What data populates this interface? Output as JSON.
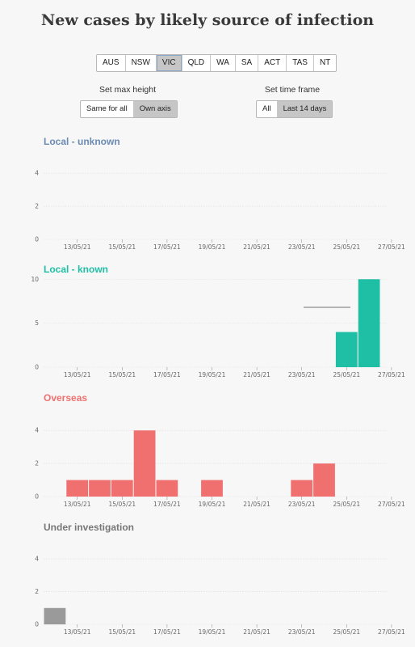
{
  "title": "New cases by likely source of infection",
  "states": {
    "items": [
      "AUS",
      "NSW",
      "VIC",
      "QLD",
      "WA",
      "SA",
      "ACT",
      "TAS",
      "NT"
    ],
    "selected": "VIC"
  },
  "max_height": {
    "label": "Set max height",
    "options": [
      "Same for all",
      "Own axis"
    ],
    "selected": "Own axis"
  },
  "time_frame": {
    "label": "Set time frame",
    "options": [
      "All",
      "Last 14 days"
    ],
    "selected": "Last 14 days"
  },
  "colors": {
    "local_unknown": "#6b8bb3",
    "local_known": "#1fbfa5",
    "overseas": "#f07070",
    "under_investigation": "#9a9a9a"
  },
  "chart_data": [
    {
      "type": "bar",
      "title": "Local - unknown",
      "x": [
        "12/05/21",
        "13/05/21",
        "14/05/21",
        "15/05/21",
        "16/05/21",
        "17/05/21",
        "18/05/21",
        "19/05/21",
        "20/05/21",
        "21/05/21",
        "22/05/21",
        "23/05/21",
        "24/05/21",
        "25/05/21",
        "26/05/21",
        "27/05/21"
      ],
      "values": [
        0,
        0,
        0,
        0,
        0,
        0,
        0,
        0,
        0,
        0,
        0,
        0,
        0,
        0,
        0,
        0
      ],
      "yticks": [
        0,
        2,
        4
      ],
      "ylim": [
        0,
        4.5
      ],
      "xticks": [
        "13/05/21",
        "15/05/21",
        "17/05/21",
        "19/05/21",
        "21/05/21",
        "23/05/21",
        "25/05/21",
        "27/05/21"
      ],
      "color": "#6b8bb3"
    },
    {
      "type": "bar",
      "title": "Local - known",
      "x": [
        "12/05/21",
        "13/05/21",
        "14/05/21",
        "15/05/21",
        "16/05/21",
        "17/05/21",
        "18/05/21",
        "19/05/21",
        "20/05/21",
        "21/05/21",
        "22/05/21",
        "23/05/21",
        "24/05/21",
        "25/05/21",
        "26/05/21",
        "27/05/21"
      ],
      "values": [
        0,
        0,
        0,
        0,
        0,
        0,
        0,
        0,
        0,
        0,
        0,
        0,
        0,
        4,
        10,
        0
      ],
      "yticks": [
        0,
        5,
        10
      ],
      "ylim": [
        0,
        10.3
      ],
      "xticks": [
        "13/05/21",
        "15/05/21",
        "17/05/21",
        "19/05/21",
        "21/05/21",
        "23/05/21",
        "25/05/21",
        "27/05/21"
      ],
      "color": "#1fbfa5"
    },
    {
      "type": "bar",
      "title": "Overseas",
      "x": [
        "12/05/21",
        "13/05/21",
        "14/05/21",
        "15/05/21",
        "16/05/21",
        "17/05/21",
        "18/05/21",
        "19/05/21",
        "20/05/21",
        "21/05/21",
        "22/05/21",
        "23/05/21",
        "24/05/21",
        "25/05/21",
        "26/05/21",
        "27/05/21"
      ],
      "values": [
        0,
        1,
        1,
        1,
        4,
        1,
        0,
        1,
        0,
        0,
        0,
        1,
        2,
        0,
        0,
        0
      ],
      "yticks": [
        0,
        2,
        4
      ],
      "ylim": [
        0,
        4.5
      ],
      "xticks": [
        "13/05/21",
        "15/05/21",
        "17/05/21",
        "19/05/21",
        "21/05/21",
        "23/05/21",
        "25/05/21",
        "27/05/21"
      ],
      "color": "#f07070"
    },
    {
      "type": "bar",
      "title": "Under investigation",
      "x": [
        "12/05/21",
        "13/05/21",
        "14/05/21",
        "15/05/21",
        "16/05/21",
        "17/05/21",
        "18/05/21",
        "19/05/21",
        "20/05/21",
        "21/05/21",
        "22/05/21",
        "23/05/21",
        "24/05/21",
        "25/05/21",
        "26/05/21",
        "27/05/21"
      ],
      "values": [
        1,
        0,
        0,
        0,
        0,
        0,
        0,
        0,
        0,
        0,
        0,
        0,
        0,
        0,
        0,
        0
      ],
      "yticks": [
        0,
        2,
        4
      ],
      "ylim": [
        0,
        4.5
      ],
      "xticks": [
        "13/05/21",
        "15/05/21",
        "17/05/21",
        "19/05/21",
        "21/05/21",
        "23/05/21",
        "25/05/21",
        "27/05/21"
      ],
      "color": "#9a9a9a"
    }
  ]
}
